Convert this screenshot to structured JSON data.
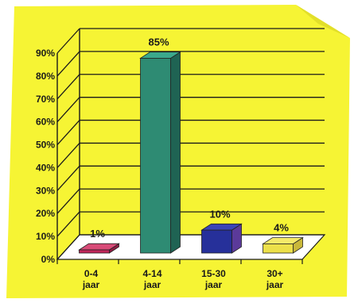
{
  "colors": {
    "paper": "#f6f434",
    "grid": "#1a1a1a",
    "floor": "#ffffff"
  },
  "chart_data": {
    "type": "bar",
    "title": "",
    "xlabel": "",
    "ylabel": "",
    "ylim": [
      0,
      90
    ],
    "yticks": [
      "0%",
      "10%",
      "20%",
      "30%",
      "40%",
      "50%",
      "60%",
      "70%",
      "80%",
      "90%"
    ],
    "grid": true,
    "legend": "none",
    "categories": [
      {
        "line1": "0-4",
        "line2": "jaar"
      },
      {
        "line1": "4-14",
        "line2": "jaar"
      },
      {
        "line1": "15-30",
        "line2": "jaar"
      },
      {
        "line1": "30+",
        "line2": "jaar"
      }
    ],
    "values": [
      1,
      85,
      10,
      4
    ],
    "data_labels": [
      "1%",
      "85%",
      "10%",
      "4%"
    ],
    "bar_colors": [
      {
        "front": "#c0275a",
        "side": "#8f1c43",
        "top": "#d84b78"
      },
      {
        "front": "#2e8b73",
        "side": "#1f6353",
        "top": "#3aa88c"
      },
      {
        "front": "#26309a",
        "side": "#5b3a9a",
        "top": "#3a44b8"
      },
      {
        "front": "#ece04a",
        "side": "#c9b83a",
        "top": "#f5ea6a"
      }
    ]
  }
}
